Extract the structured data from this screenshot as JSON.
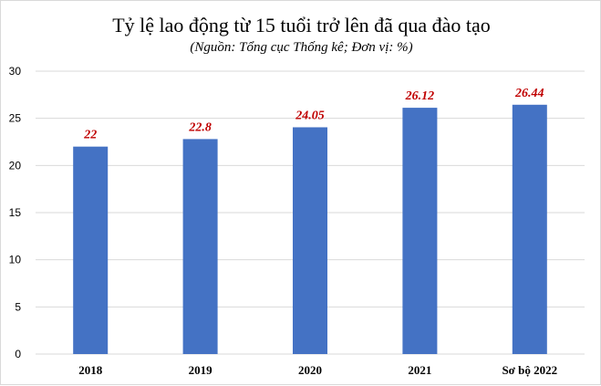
{
  "chart_data": {
    "type": "bar",
    "title": "Tỷ lệ lao động từ 15 tuổi trở lên đã qua đào tạo",
    "subtitle": "(Nguồn: Tổng cục Thống kê; Đơn vị: %)",
    "categories": [
      "2018",
      "2019",
      "2020",
      "2021",
      "Sơ bộ 2022"
    ],
    "values": [
      22,
      22.8,
      24.05,
      26.12,
      26.44
    ],
    "value_labels": [
      "22",
      "22.8",
      "24.05",
      "26.12",
      "26.44"
    ],
    "yticks": [
      "0",
      "5",
      "10",
      "15",
      "20",
      "25",
      "30"
    ],
    "ylim": [
      0,
      30
    ],
    "grid": "horizontal",
    "legend": "none",
    "colors": {
      "bar": "#4472c4",
      "data_label": "#c00000",
      "grid": "#d9d9d9"
    }
  }
}
